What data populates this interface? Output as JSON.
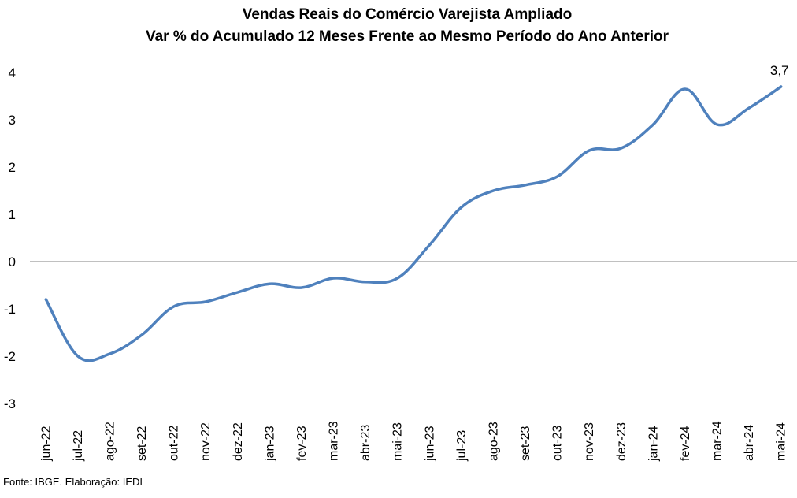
{
  "chart_data": {
    "type": "line",
    "title": "Vendas Reais do Comércio Varejista Ampliado",
    "subtitle": "Var % do Acumulado 12 Meses Frente ao Mesmo Período do Ano Anterior",
    "categories": [
      "jun-22",
      "jul-22",
      "ago-22",
      "set-22",
      "out-22",
      "nov-22",
      "dez-22",
      "jan-23",
      "fev-23",
      "mar-23",
      "abr-23",
      "mai-23",
      "jun-23",
      "jul-23",
      "ago-23",
      "set-23",
      "out-23",
      "nov-23",
      "dez-23",
      "jan-24",
      "fev-24",
      "mar-24",
      "abr-24",
      "mai-24"
    ],
    "series": [
      {
        "color": "#4f81bd",
        "values": [
          -0.8,
          -2.0,
          -1.95,
          -1.55,
          -0.95,
          -0.85,
          -0.65,
          -0.47,
          -0.55,
          -0.35,
          -0.43,
          -0.35,
          0.35,
          1.15,
          1.5,
          1.62,
          1.8,
          2.35,
          2.4,
          2.9,
          3.65,
          2.9,
          3.25,
          3.7
        ]
      }
    ],
    "data_labels": [
      {
        "index": 23,
        "text": "3,7"
      }
    ],
    "yticks": [
      "4",
      "3",
      "2",
      "1",
      "0",
      "-1",
      "-2",
      "-3"
    ],
    "ylim": [
      -3,
      4
    ],
    "grid": false,
    "zero_line": true,
    "zero_line_color": "#808080"
  },
  "source": "Fonte: IBGE. Elaboração: IEDI"
}
